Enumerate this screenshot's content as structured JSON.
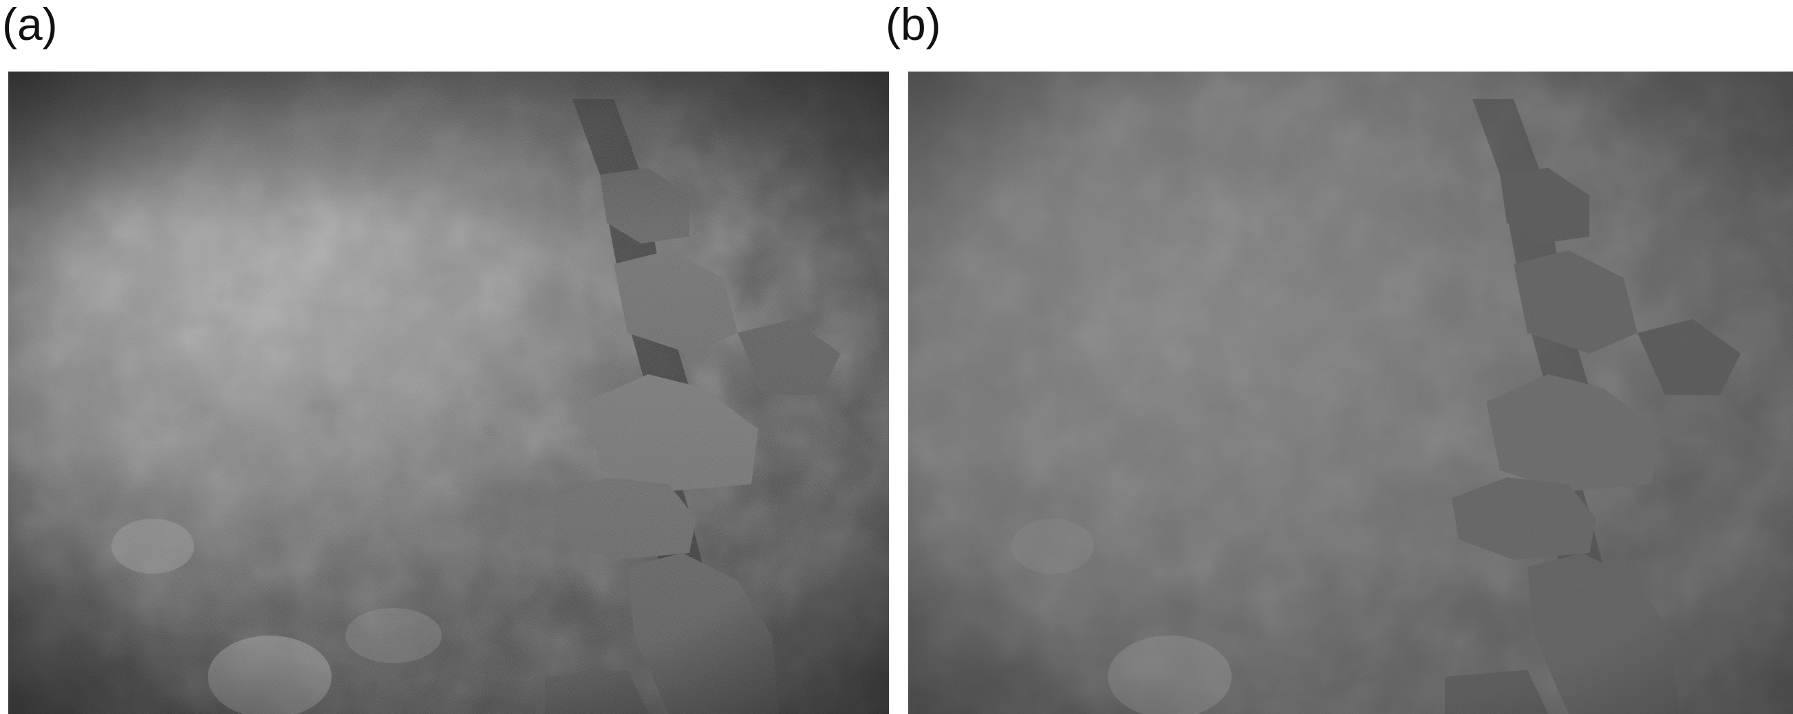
{
  "panels": [
    {
      "label": "(a)",
      "description_name": "original-underwater-photo"
    },
    {
      "label": "(b)",
      "description_name": "dehazed-underwater-photo"
    }
  ]
}
